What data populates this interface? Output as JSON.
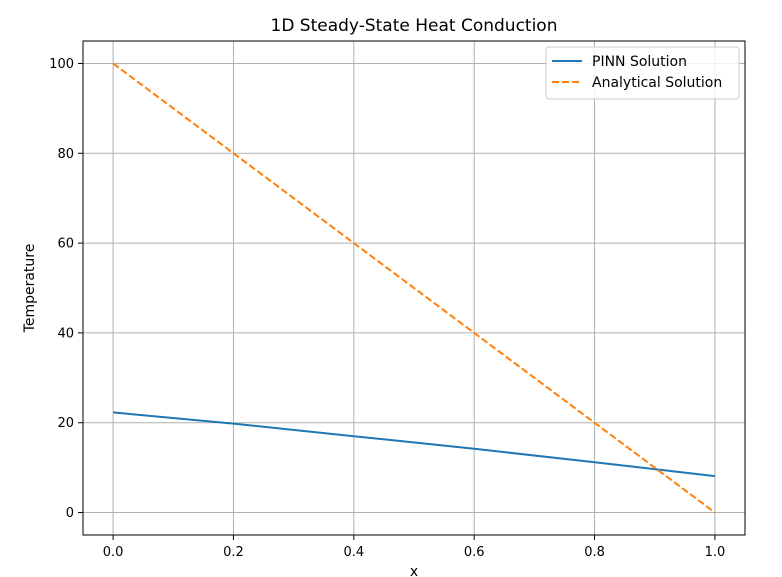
{
  "chart_data": {
    "type": "line",
    "title": "1D Steady-State Heat Conduction",
    "xlabel": "x",
    "ylabel": "Temperature",
    "xlim": [
      -0.05,
      1.05
    ],
    "ylim": [
      -5,
      105
    ],
    "xticks": [
      0.0,
      0.2,
      0.4,
      0.6,
      0.8,
      1.0
    ],
    "xtick_labels": [
      "0.0",
      "0.2",
      "0.4",
      "0.6",
      "0.8",
      "1.0"
    ],
    "yticks": [
      0,
      20,
      40,
      60,
      80,
      100
    ],
    "ytick_labels": [
      "0",
      "20",
      "40",
      "60",
      "80",
      "100"
    ],
    "grid": true,
    "legend_position": "top-right",
    "series": [
      {
        "name": "PINN Solution",
        "color": "#1f77b4",
        "style": "solid",
        "x": [
          0.0,
          0.2,
          0.4,
          0.6,
          0.8,
          1.0
        ],
        "y": [
          22.3,
          19.8,
          17.0,
          14.2,
          11.2,
          8.1
        ]
      },
      {
        "name": "Analytical Solution",
        "color": "#ff7f0e",
        "style": "dashed",
        "x": [
          0.0,
          1.0
        ],
        "y": [
          100,
          0
        ]
      }
    ]
  }
}
